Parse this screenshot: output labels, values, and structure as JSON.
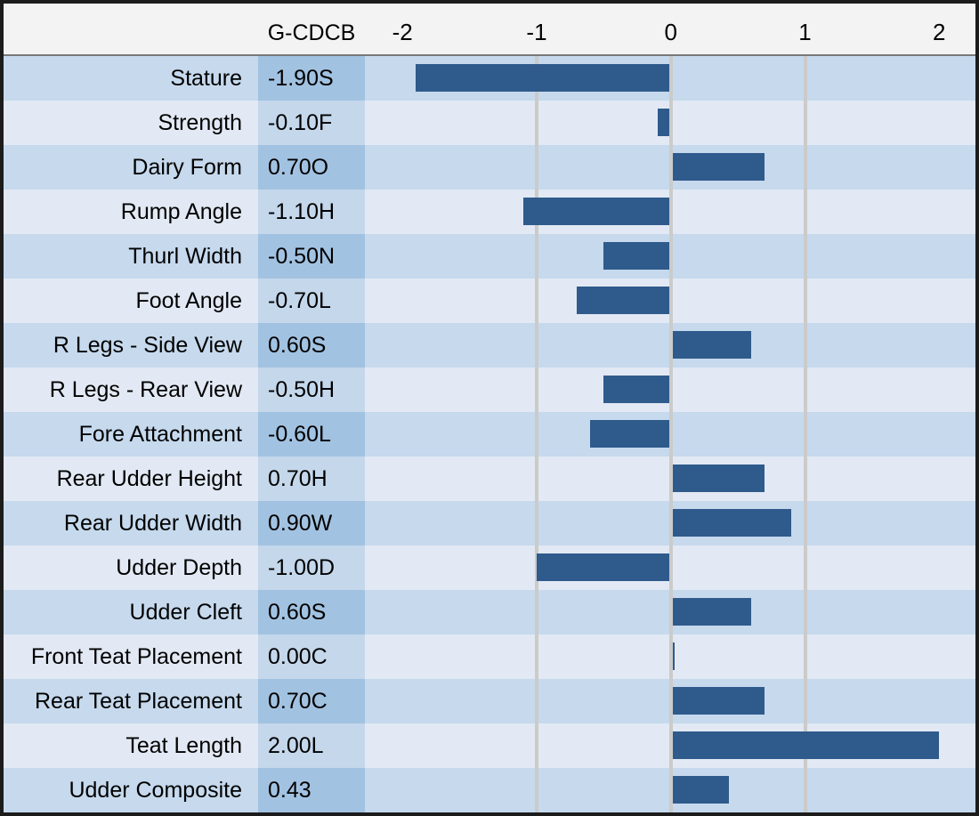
{
  "header": {
    "value_col_label": "G-CDCB"
  },
  "colors": {
    "bar": "#2f5a8c",
    "gridline": "#cbcbca",
    "header_bg": "#f3f3f3",
    "row_odd_bg": "#c6d9ed",
    "row_odd_value_bg": "#a2c2e1",
    "row_even_bg": "#e2e9f4",
    "row_even_value_bg": "#c4d7eb"
  },
  "chart_data": {
    "type": "bar",
    "orientation": "horizontal",
    "value_column_header": "G-CDCB",
    "axis": {
      "min": -2.28,
      "max": 2.27,
      "ticks": [
        {
          "value": -2,
          "label": "-2"
        },
        {
          "value": -1,
          "label": "-1"
        },
        {
          "value": 0,
          "label": "0"
        },
        {
          "value": 1,
          "label": "1"
        },
        {
          "value": 2,
          "label": "2"
        }
      ],
      "gridlines": [
        -1,
        0,
        1
      ]
    },
    "rows": [
      {
        "trait": "Stature",
        "value": -1.9,
        "value_label": "-1.90S"
      },
      {
        "trait": "Strength",
        "value": -0.1,
        "value_label": "-0.10F"
      },
      {
        "trait": "Dairy Form",
        "value": 0.7,
        "value_label": "0.70O"
      },
      {
        "trait": "Rump Angle",
        "value": -1.1,
        "value_label": "-1.10H"
      },
      {
        "trait": "Thurl Width",
        "value": -0.5,
        "value_label": "-0.50N"
      },
      {
        "trait": "Foot Angle",
        "value": -0.7,
        "value_label": "-0.70L"
      },
      {
        "trait": "R Legs - Side View",
        "value": 0.6,
        "value_label": "0.60S"
      },
      {
        "trait": "R Legs - Rear View",
        "value": -0.5,
        "value_label": "-0.50H"
      },
      {
        "trait": "Fore Attachment",
        "value": -0.6,
        "value_label": "-0.60L"
      },
      {
        "trait": "Rear Udder Height",
        "value": 0.7,
        "value_label": "0.70H"
      },
      {
        "trait": "Rear Udder Width",
        "value": 0.9,
        "value_label": "0.90W"
      },
      {
        "trait": "Udder Depth",
        "value": -1.0,
        "value_label": "-1.00D"
      },
      {
        "trait": "Udder Cleft",
        "value": 0.6,
        "value_label": "0.60S"
      },
      {
        "trait": "Front Teat Placement",
        "value": 0.0,
        "value_label": "0.00C"
      },
      {
        "trait": "Rear Teat Placement",
        "value": 0.7,
        "value_label": "0.70C"
      },
      {
        "trait": "Teat Length",
        "value": 2.0,
        "value_label": "2.00L"
      },
      {
        "trait": "Udder Composite",
        "value": 0.43,
        "value_label": "0.43"
      }
    ]
  }
}
